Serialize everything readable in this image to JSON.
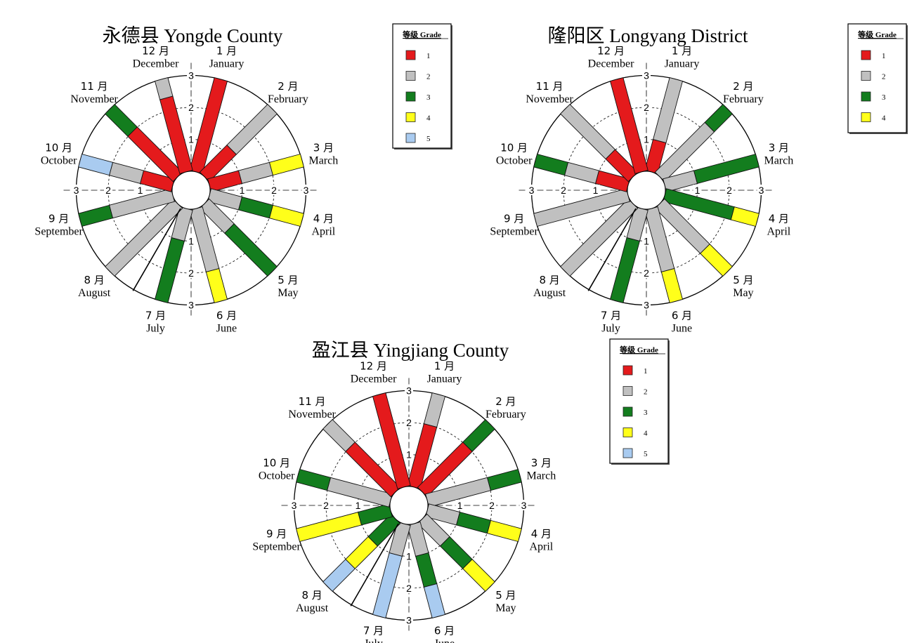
{
  "legend": {
    "title": "等级 Grade",
    "grades": [
      "1",
      "2",
      "3",
      "4",
      "5"
    ]
  },
  "grade_colors": {
    "1": "#e41a1c",
    "2": "#c0c0c0",
    "3": "#137d1e",
    "4": "#ffff1a",
    "5": "#a9cbf0"
  },
  "months": [
    {
      "cn": "1 月",
      "en": "January"
    },
    {
      "cn": "2 月",
      "en": "February"
    },
    {
      "cn": "3 月",
      "en": "March"
    },
    {
      "cn": "4 月",
      "en": "April"
    },
    {
      "cn": "5 月",
      "en": "May"
    },
    {
      "cn": "6 月",
      "en": "June"
    },
    {
      "cn": "7 月",
      "en": "July"
    },
    {
      "cn": "8 月",
      "en": "August"
    },
    {
      "cn": "9 月",
      "en": "September"
    },
    {
      "cn": "10 月",
      "en": "October"
    },
    {
      "cn": "11 月",
      "en": "November"
    },
    {
      "cn": "12 月",
      "en": "December"
    }
  ],
  "chart_data": [
    {
      "type": "radial-bar",
      "title": "永德县 Yongde County",
      "rlim": [
        0,
        3
      ],
      "ticks": [
        "1",
        "2",
        "3"
      ],
      "legend_grades": [
        1,
        2,
        3,
        4,
        5
      ],
      "months": [
        {
          "month": "January",
          "segments": [
            {
              "grade": 1,
              "from": 0,
              "to": 3.0
            }
          ]
        },
        {
          "month": "February",
          "segments": [
            {
              "grade": 1,
              "from": 0,
              "to": 1.2
            },
            {
              "grade": 2,
              "from": 1.2,
              "to": 3.0
            }
          ]
        },
        {
          "month": "March",
          "segments": [
            {
              "grade": 1,
              "from": 0,
              "to": 1.0
            },
            {
              "grade": 2,
              "from": 1.0,
              "to": 2.0
            },
            {
              "grade": 4,
              "from": 2.0,
              "to": 3.0
            }
          ]
        },
        {
          "month": "April",
          "segments": [
            {
              "grade": 2,
              "from": 0,
              "to": 1.0
            },
            {
              "grade": 3,
              "from": 1.0,
              "to": 2.0
            },
            {
              "grade": 4,
              "from": 2.0,
              "to": 3.0
            }
          ]
        },
        {
          "month": "May",
          "segments": [
            {
              "grade": 2,
              "from": 0,
              "to": 1.1
            },
            {
              "grade": 3,
              "from": 1.1,
              "to": 3.0
            }
          ]
        },
        {
          "month": "June",
          "segments": [
            {
              "grade": 2,
              "from": 0,
              "to": 2.0
            },
            {
              "grade": 4,
              "from": 2.0,
              "to": 3.0
            }
          ]
        },
        {
          "month": "July",
          "segments": [
            {
              "grade": 2,
              "from": 0,
              "to": 1.0
            },
            {
              "grade": 3,
              "from": 1.0,
              "to": 3.0
            }
          ]
        },
        {
          "month": "August",
          "segments": [
            {
              "grade": 2,
              "from": 0,
              "to": 3.0
            }
          ]
        },
        {
          "month": "September",
          "segments": [
            {
              "grade": 2,
              "from": 0,
              "to": 2.0
            },
            {
              "grade": 3,
              "from": 2.0,
              "to": 3.0
            }
          ]
        },
        {
          "month": "October",
          "segments": [
            {
              "grade": 1,
              "from": 0,
              "to": 1.0
            },
            {
              "grade": 2,
              "from": 1.0,
              "to": 2.0
            },
            {
              "grade": 5,
              "from": 2.0,
              "to": 3.0
            }
          ]
        },
        {
          "month": "November",
          "segments": [
            {
              "grade": 1,
              "from": 0,
              "to": 2.0
            },
            {
              "grade": 3,
              "from": 2.0,
              "to": 3.0
            }
          ]
        },
        {
          "month": "December",
          "segments": [
            {
              "grade": 1,
              "from": 0,
              "to": 2.4
            },
            {
              "grade": 2,
              "from": 2.4,
              "to": 3.0
            }
          ]
        }
      ]
    },
    {
      "type": "radial-bar",
      "title": "隆阳区 Longyang District",
      "rlim": [
        0,
        3
      ],
      "ticks": [
        "1",
        "2",
        "3"
      ],
      "legend_grades": [
        1,
        2,
        3,
        4
      ],
      "months": [
        {
          "month": "January",
          "segments": [
            {
              "grade": 1,
              "from": 0,
              "to": 1.0
            },
            {
              "grade": 2,
              "from": 1.0,
              "to": 3.0
            }
          ]
        },
        {
          "month": "February",
          "segments": [
            {
              "grade": 2,
              "from": 0,
              "to": 2.2
            },
            {
              "grade": 3,
              "from": 2.2,
              "to": 3.0
            }
          ]
        },
        {
          "month": "March",
          "segments": [
            {
              "grade": 2,
              "from": 0,
              "to": 1.0
            },
            {
              "grade": 3,
              "from": 1.0,
              "to": 3.0
            }
          ]
        },
        {
          "month": "April",
          "segments": [
            {
              "grade": 3,
              "from": 0,
              "to": 2.2
            },
            {
              "grade": 4,
              "from": 2.2,
              "to": 3.0
            }
          ]
        },
        {
          "month": "May",
          "segments": [
            {
              "grade": 2,
              "from": 0,
              "to": 2.0
            },
            {
              "grade": 4,
              "from": 2.0,
              "to": 3.0
            }
          ]
        },
        {
          "month": "June",
          "segments": [
            {
              "grade": 2,
              "from": 0,
              "to": 2.0
            },
            {
              "grade": 4,
              "from": 2.0,
              "to": 3.0
            }
          ]
        },
        {
          "month": "July",
          "segments": [
            {
              "grade": 2,
              "from": 0,
              "to": 1.0
            },
            {
              "grade": 3,
              "from": 1.0,
              "to": 3.0
            }
          ]
        },
        {
          "month": "August",
          "segments": [
            {
              "grade": 2,
              "from": 0,
              "to": 3.0
            }
          ]
        },
        {
          "month": "September",
          "segments": [
            {
              "grade": 2,
              "from": 0,
              "to": 3.0
            }
          ]
        },
        {
          "month": "October",
          "segments": [
            {
              "grade": 1,
              "from": 0,
              "to": 1.0
            },
            {
              "grade": 2,
              "from": 1.0,
              "to": 2.0
            },
            {
              "grade": 3,
              "from": 2.0,
              "to": 3.0
            }
          ]
        },
        {
          "month": "November",
          "segments": [
            {
              "grade": 1,
              "from": 0,
              "to": 1.0
            },
            {
              "grade": 2,
              "from": 1.0,
              "to": 3.0
            }
          ]
        },
        {
          "month": "December",
          "segments": [
            {
              "grade": 1,
              "from": 0,
              "to": 3.0
            }
          ]
        }
      ]
    },
    {
      "type": "radial-bar",
      "title": "盈江县 Yingjiang County",
      "rlim": [
        0,
        3
      ],
      "ticks": [
        "1",
        "2",
        "3"
      ],
      "legend_grades": [
        1,
        2,
        3,
        4,
        5
      ],
      "months": [
        {
          "month": "January",
          "segments": [
            {
              "grade": 1,
              "from": 0,
              "to": 2.0
            },
            {
              "grade": 2,
              "from": 2.0,
              "to": 3.0
            }
          ]
        },
        {
          "month": "February",
          "segments": [
            {
              "grade": 1,
              "from": 0,
              "to": 2.0
            },
            {
              "grade": 3,
              "from": 2.0,
              "to": 3.0
            }
          ]
        },
        {
          "month": "March",
          "segments": [
            {
              "grade": 2,
              "from": 0,
              "to": 2.0
            },
            {
              "grade": 3,
              "from": 2.0,
              "to": 3.0
            }
          ]
        },
        {
          "month": "April",
          "segments": [
            {
              "grade": 2,
              "from": 0,
              "to": 1.0
            },
            {
              "grade": 3,
              "from": 1.0,
              "to": 2.0
            },
            {
              "grade": 4,
              "from": 2.0,
              "to": 3.0
            }
          ]
        },
        {
          "month": "May",
          "segments": [
            {
              "grade": 2,
              "from": 0,
              "to": 1.0
            },
            {
              "grade": 3,
              "from": 1.0,
              "to": 2.0
            },
            {
              "grade": 4,
              "from": 2.0,
              "to": 3.0
            }
          ]
        },
        {
          "month": "June",
          "segments": [
            {
              "grade": 2,
              "from": 0,
              "to": 1.0
            },
            {
              "grade": 3,
              "from": 1.0,
              "to": 2.0
            },
            {
              "grade": 5,
              "from": 2.0,
              "to": 3.0
            }
          ]
        },
        {
          "month": "July",
          "segments": [
            {
              "grade": 2,
              "from": 0,
              "to": 1.0
            },
            {
              "grade": 5,
              "from": 1.0,
              "to": 3.0
            }
          ]
        },
        {
          "month": "August",
          "segments": [
            {
              "grade": 3,
              "from": 0,
              "to": 1.0
            },
            {
              "grade": 4,
              "from": 1.0,
              "to": 2.0
            },
            {
              "grade": 5,
              "from": 2.0,
              "to": 3.0
            }
          ]
        },
        {
          "month": "September",
          "segments": [
            {
              "grade": 3,
              "from": 0,
              "to": 1.0
            },
            {
              "grade": 4,
              "from": 1.0,
              "to": 3.0
            }
          ]
        },
        {
          "month": "October",
          "segments": [
            {
              "grade": 2,
              "from": 0,
              "to": 2.0
            },
            {
              "grade": 3,
              "from": 2.0,
              "to": 3.0
            }
          ]
        },
        {
          "month": "November",
          "segments": [
            {
              "grade": 1,
              "from": 0,
              "to": 2.0
            },
            {
              "grade": 2,
              "from": 2.0,
              "to": 3.0
            }
          ]
        },
        {
          "month": "December",
          "segments": [
            {
              "grade": 1,
              "from": 0,
              "to": 3.0
            }
          ]
        }
      ]
    }
  ]
}
